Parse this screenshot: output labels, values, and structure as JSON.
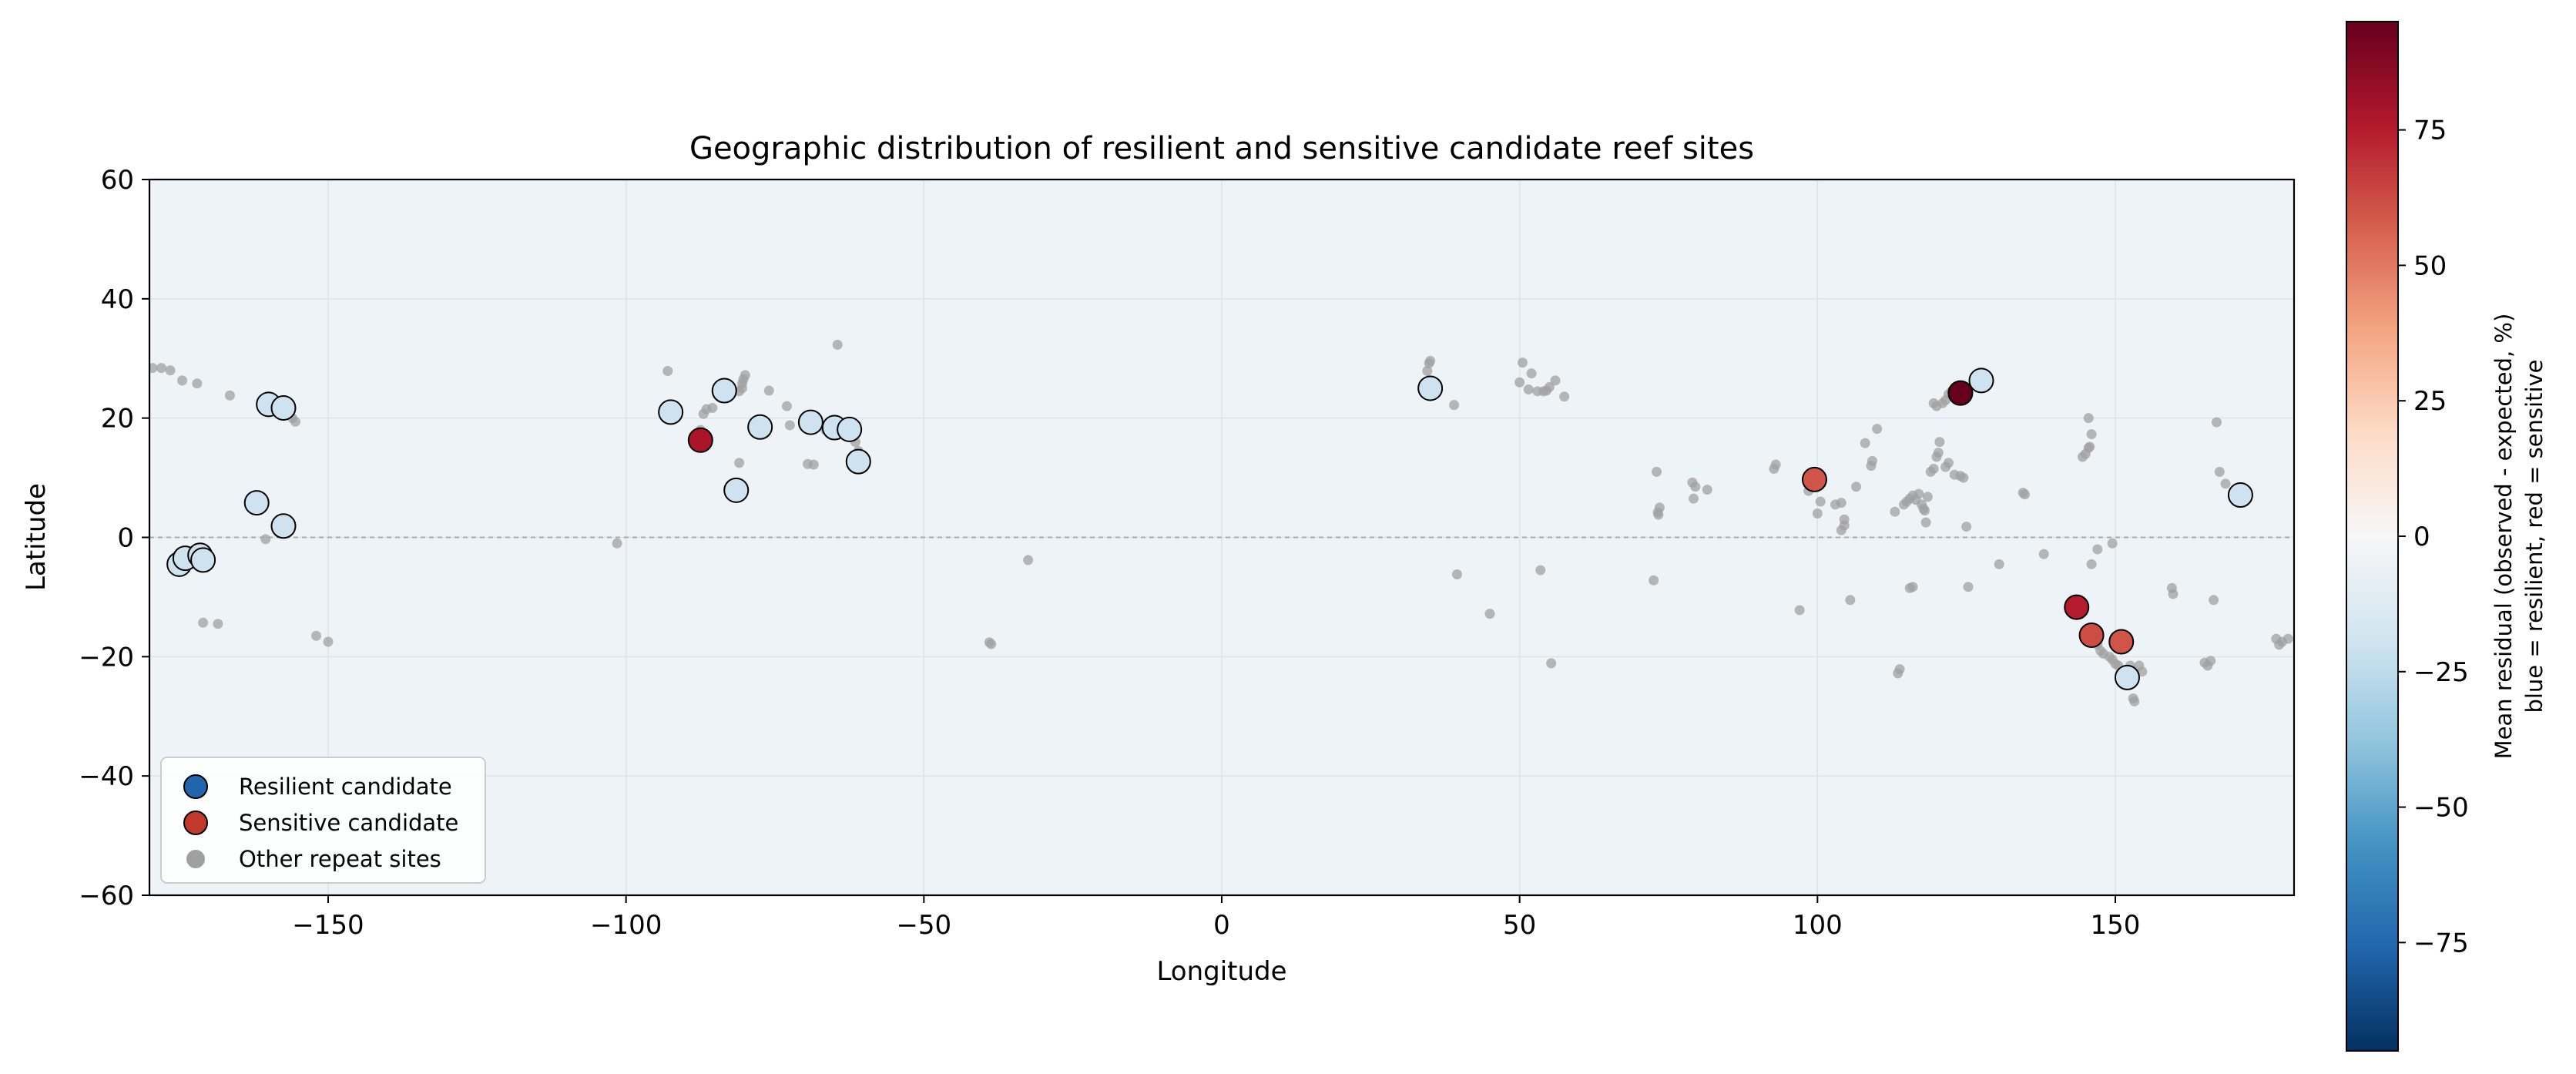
{
  "chart_data": {
    "type": "scatter",
    "title": "Geographic distribution of resilient and sensitive candidate reef sites",
    "xlabel": "Longitude",
    "ylabel": "Latitude",
    "xlim": [
      -180,
      180
    ],
    "ylim": [
      -60,
      60
    ],
    "xticks": [
      -150,
      -100,
      -50,
      0,
      50,
      100,
      150
    ],
    "yticks": [
      -60,
      -40,
      -20,
      0,
      20,
      40,
      60
    ],
    "grid": true,
    "equator_line": true,
    "background_color": "#eef3f7",
    "legend": {
      "placement": "lower-left",
      "entries": [
        {
          "label": "Resilient candidate",
          "color": "#2166ac",
          "marker": "circle-outlined"
        },
        {
          "label": "Sensitive candidate",
          "color": "#c0392b",
          "marker": "circle-outlined"
        },
        {
          "label": "Other repeat sites",
          "color": "#a0a0a0",
          "marker": "circle"
        }
      ]
    },
    "colorbar": {
      "label_line1": "Mean residual (observed - expected, %)",
      "label_line2": "blue = resilient, red = sensitive",
      "range": [
        -95,
        95
      ],
      "ticks": [
        -75,
        -50,
        -25,
        0,
        25,
        50,
        75
      ],
      "colormap": "RdBu_r"
    },
    "series": [
      {
        "name": "Resilient candidate",
        "points": [
          {
            "lon": -175,
            "lat": -4.5,
            "residual": -20
          },
          {
            "lon": -174,
            "lat": -3.5,
            "residual": -20
          },
          {
            "lon": -171.5,
            "lat": -3.0,
            "residual": -20
          },
          {
            "lon": -171,
            "lat": -3.8,
            "residual": -20
          },
          {
            "lon": -160,
            "lat": 22.3,
            "residual": -20
          },
          {
            "lon": -157.5,
            "lat": 21.7,
            "residual": -20
          },
          {
            "lon": -162,
            "lat": 5.8,
            "residual": -20
          },
          {
            "lon": -157.5,
            "lat": 1.9,
            "residual": -20
          },
          {
            "lon": -92.5,
            "lat": 21.0,
            "residual": -20
          },
          {
            "lon": -83.5,
            "lat": 24.6,
            "residual": -20
          },
          {
            "lon": -81.5,
            "lat": 7.9,
            "residual": -20
          },
          {
            "lon": -77.5,
            "lat": 18.5,
            "residual": -20
          },
          {
            "lon": -69,
            "lat": 19.3,
            "residual": -20
          },
          {
            "lon": -65,
            "lat": 18.4,
            "residual": -20
          },
          {
            "lon": -62.5,
            "lat": 18.1,
            "residual": -20
          },
          {
            "lon": -61,
            "lat": 12.7,
            "residual": -20
          },
          {
            "lon": 35,
            "lat": 25.0,
            "residual": -20
          },
          {
            "lon": 127.5,
            "lat": 26.3,
            "residual": -20
          },
          {
            "lon": 171,
            "lat": 7.1,
            "residual": -20
          },
          {
            "lon": 152,
            "lat": -23.5,
            "residual": -20
          }
        ]
      },
      {
        "name": "Sensitive candidate",
        "points": [
          {
            "lon": -87.5,
            "lat": 16.3,
            "residual": 78
          },
          {
            "lon": 99.5,
            "lat": 9.7,
            "residual": 60
          },
          {
            "lon": 124,
            "lat": 24.2,
            "residual": 95
          },
          {
            "lon": 143.5,
            "lat": -11.7,
            "residual": 75
          },
          {
            "lon": 146,
            "lat": -16.4,
            "residual": 62
          },
          {
            "lon": 151,
            "lat": -17.5,
            "residual": 60
          }
        ]
      },
      {
        "name": "Other repeat sites",
        "points": [
          [
            -179.5,
            28.4
          ],
          [
            -178,
            28.4
          ],
          [
            -176.5,
            28.0
          ],
          [
            -174.5,
            26.3
          ],
          [
            -172,
            25.8
          ],
          [
            -166.5,
            23.8
          ],
          [
            -171,
            -14.3
          ],
          [
            -168.5,
            -14.5
          ],
          [
            -160.5,
            -0.3
          ],
          [
            -156,
            20.0
          ],
          [
            -155.5,
            19.4
          ],
          [
            -152,
            -16.5
          ],
          [
            -150,
            -17.5
          ],
          [
            -101.5,
            -1.0
          ],
          [
            -93,
            27.9
          ],
          [
            -87,
            20.7
          ],
          [
            -87.5,
            18.0
          ],
          [
            -88,
            17.2
          ],
          [
            -86.5,
            21.5
          ],
          [
            -85.5,
            21.7
          ],
          [
            -81,
            24.5
          ],
          [
            -80.5,
            25.0
          ],
          [
            -80.5,
            25.8
          ],
          [
            -80.3,
            26.5
          ],
          [
            -80,
            27.2
          ],
          [
            -81,
            12.5
          ],
          [
            -76,
            24.6
          ],
          [
            -73,
            22.0
          ],
          [
            -72.5,
            18.8
          ],
          [
            -69.5,
            12.3
          ],
          [
            -68.5,
            12.2
          ],
          [
            -66.5,
            18.0
          ],
          [
            -64.5,
            32.3
          ],
          [
            -61,
            14.5
          ],
          [
            -61.5,
            16.0
          ],
          [
            -39,
            -17.6
          ],
          [
            -38.7,
            -17.9
          ],
          [
            -32.5,
            -3.8
          ],
          [
            34.5,
            27.9
          ],
          [
            34.8,
            29.2
          ],
          [
            35,
            29.6
          ],
          [
            39,
            22.2
          ],
          [
            39.5,
            -6.2
          ],
          [
            45,
            -12.8
          ],
          [
            50,
            26.0
          ],
          [
            50.5,
            29.3
          ],
          [
            51.5,
            24.8
          ],
          [
            52,
            27.5
          ],
          [
            53,
            24.5
          ],
          [
            54,
            24.5
          ],
          [
            54.5,
            24.6
          ],
          [
            55,
            25.2
          ],
          [
            56,
            26.3
          ],
          [
            57.5,
            23.6
          ],
          [
            53.5,
            -5.5
          ],
          [
            55.3,
            -21.1
          ],
          [
            73,
            11.0
          ],
          [
            73.2,
            4.2
          ],
          [
            73.5,
            5.0
          ],
          [
            73.3,
            3.8
          ],
          [
            72.5,
            -7.2
          ],
          [
            79,
            9.2
          ],
          [
            79.5,
            8.5
          ],
          [
            79.2,
            6.5
          ],
          [
            81.5,
            8.0
          ],
          [
            92.7,
            11.5
          ],
          [
            93,
            12.2
          ],
          [
            97,
            -12.2
          ],
          [
            98.5,
            7.8
          ],
          [
            100,
            4.0
          ],
          [
            100.5,
            6.0
          ],
          [
            103,
            5.5
          ],
          [
            104,
            1.2
          ],
          [
            104.5,
            2.0
          ],
          [
            104.5,
            3.0
          ],
          [
            104,
            5.8
          ],
          [
            105.5,
            -10.5
          ],
          [
            106.5,
            8.5
          ],
          [
            108,
            15.8
          ],
          [
            109,
            12.0
          ],
          [
            109.2,
            12.8
          ],
          [
            110,
            18.2
          ],
          [
            113,
            4.3
          ],
          [
            113.8,
            -22.1
          ],
          [
            113.5,
            -22.8
          ],
          [
            114.5,
            5.5
          ],
          [
            115,
            6.0
          ],
          [
            115.5,
            6.5
          ],
          [
            116,
            7.0
          ],
          [
            116.5,
            6.3
          ],
          [
            117,
            7.3
          ],
          [
            117.5,
            5.5
          ],
          [
            117.8,
            4.8
          ],
          [
            118,
            4.5
          ],
          [
            118.2,
            2.5
          ],
          [
            118.5,
            6.8
          ],
          [
            119,
            11.0
          ],
          [
            119.5,
            11.5
          ],
          [
            120,
            13.5
          ],
          [
            120.3,
            14.2
          ],
          [
            120.5,
            16.0
          ],
          [
            120,
            22.0
          ],
          [
            121,
            22.5
          ],
          [
            121.5,
            23.0
          ],
          [
            122,
            24.0
          ],
          [
            123.5,
            23.5
          ],
          [
            121.5,
            11.8
          ],
          [
            122,
            12.5
          ],
          [
            123,
            10.5
          ],
          [
            124,
            10.3
          ],
          [
            124.5,
            10.0
          ],
          [
            125,
            1.8
          ],
          [
            125.3,
            -8.3
          ],
          [
            116,
            -8.3
          ],
          [
            115.5,
            -8.5
          ],
          [
            119.5,
            22.5
          ],
          [
            122.5,
            24.5
          ],
          [
            130.5,
            -4.5
          ],
          [
            134.5,
            7.5
          ],
          [
            134.8,
            7.2
          ],
          [
            138,
            -2.8
          ],
          [
            144,
            -10.5
          ],
          [
            144.5,
            13.5
          ],
          [
            145,
            14.0
          ],
          [
            145.5,
            15.0
          ],
          [
            145.7,
            15.2
          ],
          [
            145.5,
            20.0
          ],
          [
            146,
            17.3
          ],
          [
            146,
            -4.5
          ],
          [
            146.5,
            -17.0
          ],
          [
            147,
            -18.0
          ],
          [
            147.5,
            -19.0
          ],
          [
            148,
            -19.5
          ],
          [
            149,
            -20.0
          ],
          [
            149.5,
            -20.5
          ],
          [
            150,
            -21.2
          ],
          [
            150.5,
            -21.5
          ],
          [
            152.5,
            -21.5
          ],
          [
            153,
            -27.0
          ],
          [
            153.2,
            -27.5
          ],
          [
            154,
            -21.5
          ],
          [
            154.5,
            -22.5
          ],
          [
            147,
            -2.0
          ],
          [
            149.5,
            -1.0
          ],
          [
            159.5,
            -8.5
          ],
          [
            159.7,
            -9.5
          ],
          [
            165,
            -21.0
          ],
          [
            165.5,
            -21.5
          ],
          [
            166,
            -20.7
          ],
          [
            166.5,
            -10.5
          ],
          [
            167,
            19.3
          ],
          [
            167.5,
            11.0
          ],
          [
            168.5,
            9.0
          ],
          [
            177,
            -17.0
          ],
          [
            178,
            -17.5
          ],
          [
            177.5,
            -18.0
          ],
          [
            179,
            -17.0
          ]
        ]
      }
    ]
  }
}
